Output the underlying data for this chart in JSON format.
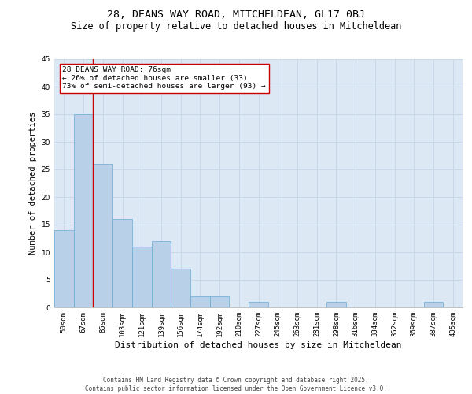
{
  "title1": "28, DEANS WAY ROAD, MITCHELDEAN, GL17 0BJ",
  "title2": "Size of property relative to detached houses in Mitcheldean",
  "xlabel": "Distribution of detached houses by size in Mitcheldean",
  "ylabel": "Number of detached properties",
  "categories": [
    "50sqm",
    "67sqm",
    "85sqm",
    "103sqm",
    "121sqm",
    "139sqm",
    "156sqm",
    "174sqm",
    "192sqm",
    "210sqm",
    "227sqm",
    "245sqm",
    "263sqm",
    "281sqm",
    "298sqm",
    "316sqm",
    "334sqm",
    "352sqm",
    "369sqm",
    "387sqm",
    "405sqm"
  ],
  "values": [
    14,
    35,
    26,
    16,
    11,
    12,
    7,
    2,
    2,
    0,
    1,
    0,
    0,
    0,
    1,
    0,
    0,
    0,
    0,
    1,
    0
  ],
  "bar_color": "#b8d0e8",
  "bar_edge_color": "#6aaad4",
  "grid_color": "#c8d8e8",
  "background_color": "#dce8f4",
  "vline_x": 1.5,
  "vline_color": "#cc0000",
  "annotation_text": "28 DEANS WAY ROAD: 76sqm\n← 26% of detached houses are smaller (33)\n73% of semi-detached houses are larger (93) →",
  "annotation_box_color": "#cc0000",
  "ylim": [
    0,
    45
  ],
  "yticks": [
    0,
    5,
    10,
    15,
    20,
    25,
    30,
    35,
    40,
    45
  ],
  "footnote": "Contains HM Land Registry data © Crown copyright and database right 2025.\nContains public sector information licensed under the Open Government Licence v3.0.",
  "title1_fontsize": 9.5,
  "title2_fontsize": 8.5,
  "xlabel_fontsize": 8,
  "ylabel_fontsize": 7.5,
  "tick_fontsize": 6.5,
  "annotation_fontsize": 6.8,
  "footnote_fontsize": 5.5
}
